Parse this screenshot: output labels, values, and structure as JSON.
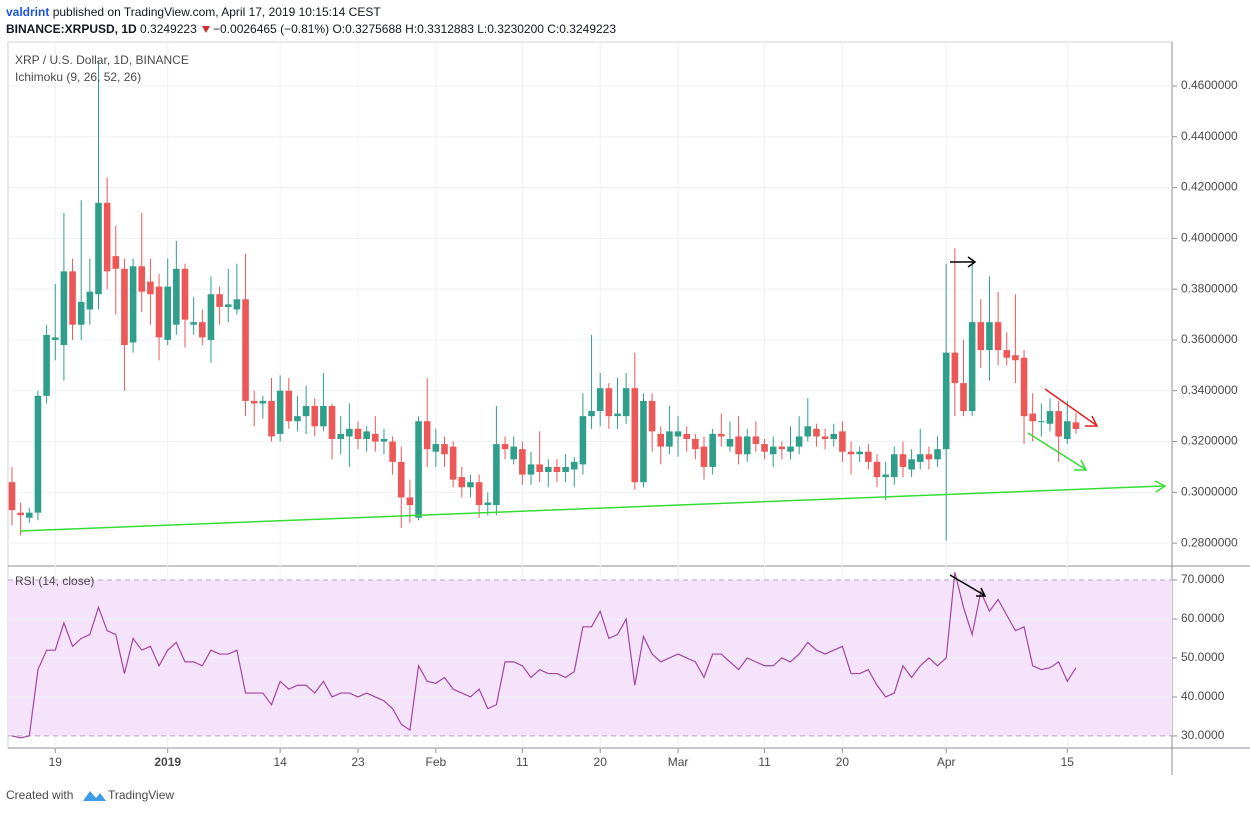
{
  "header": {
    "publisher": "valdrint",
    "published": "published on TradingView.com, April 17, 2019 10:15:14 CEST",
    "symbol": "BINANCE:XRPUSD, 1D",
    "last": "0.3249223",
    "change": "−0.0026465 (−0.81%)",
    "ohlc": "O:0.3275688 H:0.3312883 L:0.3230200 C:0.3249223"
  },
  "footer": {
    "created": "Created with",
    "brand": "TradingView"
  },
  "chart_data": [
    {
      "type": "candlestick",
      "title": "XRP / U.S. Dollar, 1D, BINANCE",
      "subtitle": "Ichimoku (9, 26, 52, 26)",
      "up_color": "#2f9f8c",
      "down_color": "#ec5757",
      "grid": true,
      "categories": [
        null,
        null,
        null,
        null,
        null,
        "19",
        null,
        null,
        null,
        null,
        null,
        null,
        null,
        null,
        null,
        null,
        null,
        null,
        "2019",
        null,
        null,
        null,
        null,
        null,
        null,
        null,
        null,
        null,
        null,
        null,
        null,
        "14",
        null,
        null,
        null,
        null,
        null,
        null,
        null,
        null,
        "23",
        null,
        null,
        null,
        null,
        null,
        null,
        null,
        null,
        "Feb",
        null,
        null,
        null,
        null,
        null,
        null,
        null,
        null,
        null,
        "11",
        null,
        null,
        null,
        null,
        null,
        null,
        null,
        null,
        "20",
        null,
        null,
        null,
        null,
        null,
        null,
        null,
        null,
        "Mar",
        null,
        null,
        null,
        null,
        null,
        null,
        null,
        null,
        null,
        "11",
        null,
        null,
        null,
        null,
        null,
        null,
        null,
        null,
        "20",
        null,
        null,
        null,
        null,
        null,
        null,
        null,
        null,
        null,
        null,
        null,
        "Apr",
        null,
        null,
        null,
        null,
        null,
        null,
        null,
        null,
        null,
        null,
        null,
        null,
        null,
        "15",
        null
      ],
      "open": [
        0.304,
        0.292,
        0.29,
        0.292,
        0.338,
        0.36,
        0.358,
        0.387,
        0.366,
        0.372,
        0.378,
        0.414,
        0.393,
        0.388,
        0.359,
        0.389,
        0.383,
        0.381,
        0.36,
        0.366,
        0.388,
        0.366,
        0.367,
        0.36,
        0.378,
        0.373,
        0.372,
        0.376,
        0.336,
        0.335,
        0.336,
        0.323,
        0.34,
        0.328,
        0.33,
        0.334,
        0.326,
        0.334,
        0.321,
        0.322,
        0.325,
        0.321,
        0.323,
        0.32,
        0.32,
        0.312,
        0.298,
        0.29,
        0.328,
        0.316,
        0.319,
        0.318,
        0.306,
        0.302,
        0.304,
        0.295,
        0.295,
        0.319,
        0.313,
        0.317,
        0.307,
        0.311,
        0.308,
        0.31,
        0.308,
        0.309,
        0.311,
        0.33,
        0.332,
        0.341,
        0.33,
        0.33,
        0.341,
        0.304,
        0.336,
        0.323,
        0.318,
        0.322,
        0.323,
        0.321,
        0.318,
        0.31,
        0.323,
        0.318,
        0.322,
        0.315,
        0.322,
        0.319,
        0.315,
        0.318,
        0.316,
        0.318,
        0.322,
        0.325,
        0.322,
        0.321,
        0.324,
        0.316,
        0.315,
        0.316,
        0.312,
        0.306,
        0.306,
        0.315,
        0.309,
        0.312,
        0.315,
        0.313,
        0.317,
        0.355,
        0.343,
        0.332,
        0.367,
        0.356,
        0.367,
        0.356,
        0.354,
        0.353,
        0.331,
        0.328,
        0.327,
        0.332,
        0.321,
        0.3275688
      ],
      "high": [
        0.31,
        0.296,
        0.294,
        0.34,
        0.366,
        0.382,
        0.41,
        0.392,
        0.415,
        0.392,
        0.47,
        0.424,
        0.405,
        0.392,
        0.392,
        0.41,
        0.392,
        0.386,
        0.392,
        0.399,
        0.39,
        0.377,
        0.372,
        0.385,
        0.381,
        0.388,
        0.39,
        0.394,
        0.34,
        0.338,
        0.345,
        0.346,
        0.345,
        0.338,
        0.342,
        0.337,
        0.347,
        0.335,
        0.33,
        0.335,
        0.328,
        0.326,
        0.33,
        0.325,
        0.322,
        0.318,
        0.305,
        0.33,
        0.345,
        0.325,
        0.322,
        0.32,
        0.31,
        0.307,
        0.307,
        0.3,
        0.334,
        0.322,
        0.322,
        0.32,
        0.316,
        0.324,
        0.313,
        0.313,
        0.315,
        0.314,
        0.339,
        0.362,
        0.347,
        0.343,
        0.345,
        0.347,
        0.355,
        0.339,
        0.339,
        0.326,
        0.334,
        0.33,
        0.326,
        0.323,
        0.322,
        0.325,
        0.331,
        0.328,
        0.33,
        0.325,
        0.328,
        0.321,
        0.322,
        0.32,
        0.326,
        0.33,
        0.337,
        0.327,
        0.325,
        0.327,
        0.328,
        0.32,
        0.318,
        0.319,
        0.315,
        0.312,
        0.318,
        0.32,
        0.317,
        0.325,
        0.318,
        0.322,
        0.39,
        0.396,
        0.36,
        0.39,
        0.376,
        0.385,
        0.379,
        0.363,
        0.378,
        0.356,
        0.339,
        0.335,
        0.337,
        0.336,
        0.336,
        0.3312883
      ],
      "low": [
        0.287,
        0.283,
        0.288,
        0.289,
        0.335,
        0.352,
        0.344,
        0.36,
        0.36,
        0.366,
        0.372,
        0.38,
        0.37,
        0.34,
        0.355,
        0.371,
        0.366,
        0.352,
        0.358,
        0.362,
        0.357,
        0.362,
        0.358,
        0.351,
        0.366,
        0.367,
        0.37,
        0.33,
        0.326,
        0.329,
        0.32,
        0.32,
        0.325,
        0.324,
        0.323,
        0.322,
        0.324,
        0.313,
        0.315,
        0.31,
        0.317,
        0.316,
        0.316,
        0.315,
        0.307,
        0.286,
        0.288,
        0.289,
        0.31,
        0.31,
        0.31,
        0.302,
        0.298,
        0.298,
        0.29,
        0.291,
        0.291,
        0.313,
        0.311,
        0.303,
        0.303,
        0.304,
        0.302,
        0.304,
        0.304,
        0.302,
        0.307,
        0.325,
        0.326,
        0.325,
        0.325,
        0.327,
        0.301,
        0.302,
        0.316,
        0.311,
        0.315,
        0.314,
        0.316,
        0.313,
        0.305,
        0.307,
        0.318,
        0.316,
        0.311,
        0.312,
        0.316,
        0.313,
        0.31,
        0.313,
        0.313,
        0.315,
        0.32,
        0.318,
        0.317,
        0.318,
        0.312,
        0.307,
        0.312,
        0.309,
        0.302,
        0.297,
        0.303,
        0.306,
        0.306,
        0.309,
        0.309,
        0.31,
        0.281,
        0.33,
        0.33,
        0.33,
        0.349,
        0.344,
        0.35,
        0.35,
        0.343,
        0.319,
        0.32,
        0.322,
        0.324,
        0.312,
        0.319,
        0.32302
      ],
      "close": [
        0.293,
        0.291,
        0.292,
        0.338,
        0.362,
        0.361,
        0.387,
        0.366,
        0.375,
        0.379,
        0.414,
        0.387,
        0.388,
        0.358,
        0.389,
        0.379,
        0.378,
        0.361,
        0.381,
        0.388,
        0.368,
        0.367,
        0.361,
        0.378,
        0.373,
        0.374,
        0.376,
        0.336,
        0.335,
        0.336,
        0.322,
        0.34,
        0.328,
        0.33,
        0.334,
        0.326,
        0.334,
        0.321,
        0.323,
        0.325,
        0.321,
        0.324,
        0.32,
        0.321,
        0.312,
        0.298,
        0.295,
        0.328,
        0.317,
        0.319,
        0.315,
        0.305,
        0.302,
        0.304,
        0.295,
        0.296,
        0.319,
        0.317,
        0.318,
        0.307,
        0.311,
        0.308,
        0.31,
        0.308,
        0.31,
        0.312,
        0.33,
        0.332,
        0.341,
        0.33,
        0.331,
        0.341,
        0.304,
        0.336,
        0.324,
        0.318,
        0.324,
        0.324,
        0.321,
        0.317,
        0.31,
        0.323,
        0.322,
        0.321,
        0.315,
        0.322,
        0.319,
        0.316,
        0.318,
        0.317,
        0.318,
        0.322,
        0.326,
        0.322,
        0.321,
        0.323,
        0.316,
        0.315,
        0.316,
        0.312,
        0.306,
        0.307,
        0.315,
        0.31,
        0.313,
        0.315,
        0.313,
        0.317,
        0.355,
        0.343,
        0.332,
        0.367,
        0.356,
        0.367,
        0.356,
        0.353,
        0.352,
        0.33,
        0.328,
        0.328,
        0.332,
        0.322,
        0.328,
        0.3249223
      ],
      "ylim": [
        0.271,
        0.4773
      ],
      "yticks": [
        {
          "value": 0.28,
          "label": "0.2800000"
        },
        {
          "value": 0.3,
          "label": "0.3000000"
        },
        {
          "value": 0.32,
          "label": "0.3200000"
        },
        {
          "value": 0.34,
          "label": "0.3400000"
        },
        {
          "value": 0.36,
          "label": "0.3600000"
        },
        {
          "value": 0.38,
          "label": "0.3800000"
        },
        {
          "value": 0.4,
          "label": "0.4000000"
        },
        {
          "value": 0.42,
          "label": "0.4200000"
        },
        {
          "value": 0.44,
          "label": "0.4400000"
        },
        {
          "value": 0.46,
          "label": "0.4600000"
        }
      ]
    },
    {
      "type": "line",
      "title": "RSI (14, close)",
      "color": "#a3479f",
      "band_color": "#f4e3fb",
      "grid": true,
      "values": [
        30,
        29.5,
        30,
        47,
        52,
        52,
        59,
        53,
        55,
        56,
        63,
        57,
        56,
        46,
        55,
        52,
        53,
        48,
        52,
        54,
        49,
        49,
        48,
        52,
        51,
        51,
        52,
        41,
        41,
        41,
        38,
        44,
        42,
        43,
        43,
        41,
        44,
        40,
        41,
        41,
        40,
        41,
        40,
        39,
        37,
        33,
        31.5,
        48,
        44,
        43.5,
        45,
        42,
        41,
        40,
        42,
        37,
        38,
        49,
        49,
        48,
        45,
        47,
        46,
        46,
        45,
        46.5,
        58,
        58,
        62,
        55,
        56,
        60,
        43,
        55.5,
        51,
        49,
        50,
        51,
        50,
        49,
        45,
        51,
        51,
        49,
        47,
        50,
        49,
        48,
        48,
        50,
        49,
        51,
        54,
        52,
        51,
        52,
        53,
        46,
        46,
        47,
        43,
        40,
        41,
        48,
        45,
        48,
        50,
        48,
        50,
        72,
        63,
        56,
        67,
        62,
        65,
        61,
        57,
        58,
        48,
        47,
        47.5,
        49,
        44,
        47.5
      ],
      "ylim": [
        26.9,
        73.6
      ],
      "yticks": [
        {
          "value": 30,
          "label": "30.0000"
        },
        {
          "value": 40,
          "label": "40.0000"
        },
        {
          "value": 50,
          "label": "50.0000"
        },
        {
          "value": 60,
          "label": "60.0000"
        },
        {
          "value": 70,
          "label": "70.0000"
        }
      ]
    }
  ]
}
